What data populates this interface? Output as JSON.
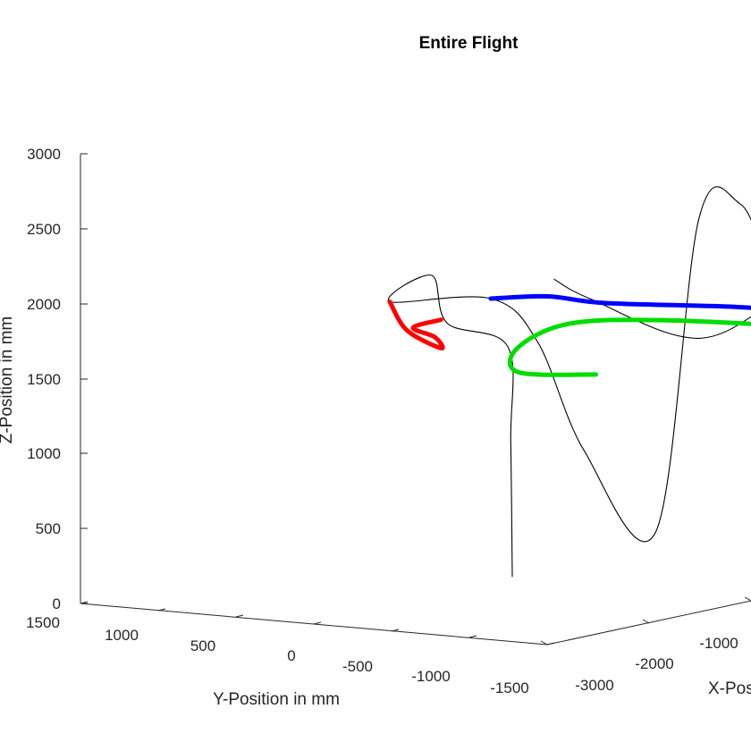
{
  "chart_data": {
    "type": "line",
    "title": "Entire Flight",
    "xlabel": "X-Position in mm",
    "ylabel": "Y-Position in mm",
    "zlabel": "Z-Position in mm",
    "grid": false,
    "x_ticks": [
      "-3000",
      "-2000",
      "-1000"
    ],
    "y_ticks": [
      "1500",
      "1000",
      "500",
      "0",
      "-500",
      "-1000",
      "-1500"
    ],
    "z_ticks": [
      "0",
      "500",
      "1000",
      "1500",
      "2000",
      "2500",
      "3000"
    ],
    "zlim": [
      0,
      3000
    ],
    "series": [
      {
        "name": "",
        "color": "#000000",
        "points": [
          {
            "y": 100,
            "x": -1900,
            "z": 0
          },
          {
            "y": 110,
            "x": -1900,
            "z": 900
          },
          {
            "y": 260,
            "x": -1700,
            "z": 1490
          },
          {
            "y": 780,
            "x": -1500,
            "z": 1570
          },
          {
            "y": 880,
            "x": -1500,
            "z": 1880
          },
          {
            "y": 1150,
            "x": -1500,
            "z": 1680
          },
          {
            "y": 500,
            "x": -1500,
            "z": 1760
          },
          {
            "y": 200,
            "x": -1500,
            "z": 1500
          },
          {
            "y": -100,
            "x": -1500,
            "z": 800
          },
          {
            "y": -560,
            "x": -1500,
            "z": 300
          },
          {
            "y": -1100,
            "x": -1900,
            "z": 2500
          },
          {
            "y": -1300,
            "x": -1800,
            "z": 2600
          },
          {
            "y": -1480,
            "x": -1600,
            "z": 2100
          },
          {
            "y": -1900,
            "x": -1200,
            "z": 2250
          },
          {
            "y": -1500,
            "x": -1600,
            "z": 2000
          },
          {
            "y": -1100,
            "x": -1900,
            "z": 1700
          },
          {
            "y": -400,
            "x": -1900,
            "z": 1900
          },
          {
            "y": -300,
            "x": -2100,
            "z": 2050
          }
        ]
      },
      {
        "name": "",
        "color": "#ff0000",
        "points": [
          {
            "y": 1150,
            "x": -1500,
            "z": 1680
          },
          {
            "y": 1040,
            "x": -1500,
            "z": 1500
          },
          {
            "y": 820,
            "x": -1500,
            "z": 1400
          },
          {
            "y": 860,
            "x": -1500,
            "z": 1470
          },
          {
            "y": 1000,
            "x": -1500,
            "z": 1520
          },
          {
            "y": 820,
            "x": -1500,
            "z": 1590
          }
        ]
      },
      {
        "name": "",
        "color": "#0000ff",
        "points": [
          {
            "y": 500,
            "x": -1500,
            "z": 1760
          },
          {
            "y": 0,
            "x": -1700,
            "z": 1850
          },
          {
            "y": -500,
            "x": -1900,
            "z": 1880
          },
          {
            "y": -1200,
            "x": -1700,
            "z": 1890
          },
          {
            "y": -1500,
            "x": -1500,
            "z": 1850
          },
          {
            "y": -1560,
            "x": -1550,
            "z": 1860
          }
        ]
      },
      {
        "name": "",
        "color": "#00dd00",
        "points": [
          {
            "y": -700,
            "x": -2300,
            "z": 1480
          },
          {
            "y": -200,
            "x": -2300,
            "z": 1450
          },
          {
            "y": 0,
            "x": -2000,
            "z": 1550
          },
          {
            "y": -200,
            "x": -1800,
            "z": 1700
          },
          {
            "y": -700,
            "x": -1600,
            "z": 1740
          },
          {
            "y": -1500,
            "x": -1200,
            "z": 1700
          }
        ]
      }
    ]
  }
}
